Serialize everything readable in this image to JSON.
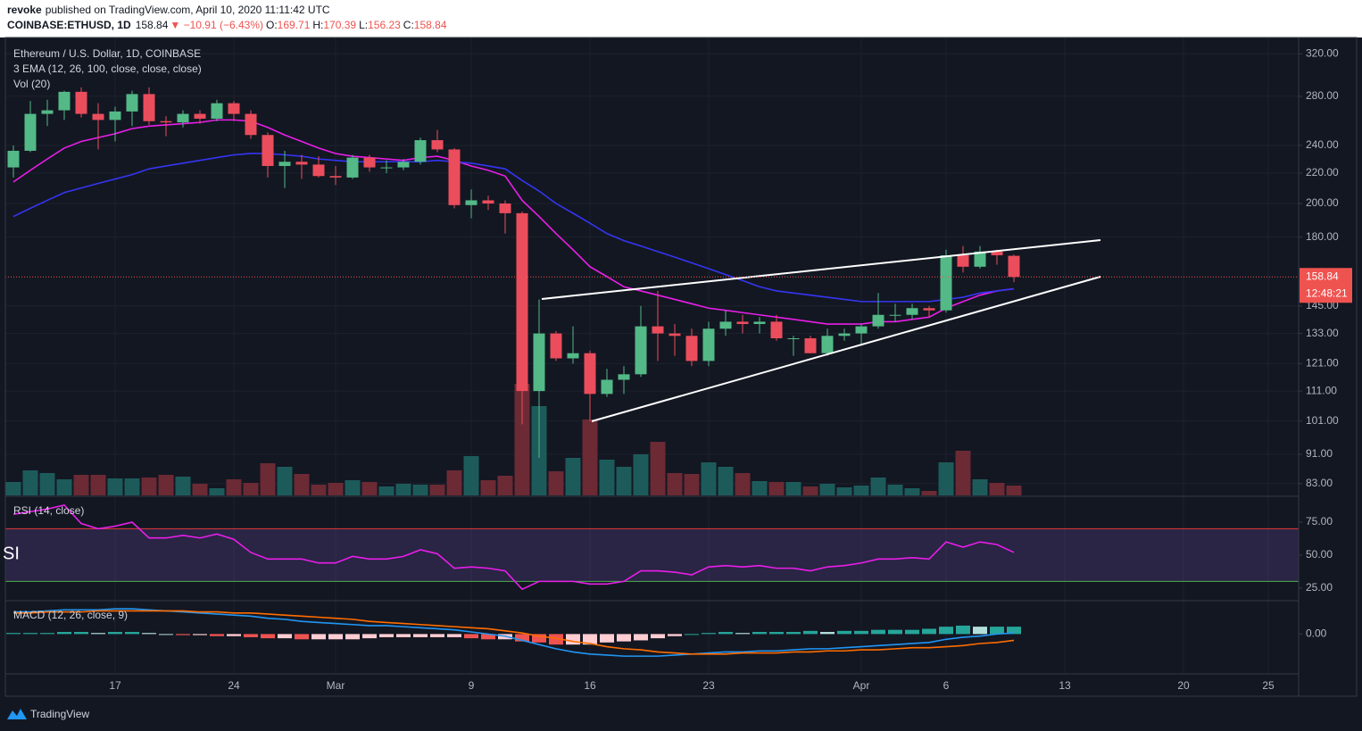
{
  "header": {
    "author": "revoke",
    "published": "published on TradingView.com, April 10, 2020 11:11:42 UTC",
    "symbol": "COINBASE:ETHUSD, 1D",
    "change": "▼ −10.91 (−6.43%)",
    "ohlc_labels": [
      "O:",
      "H:",
      "L:",
      "C:"
    ]
  },
  "footer": {
    "brand": "TradingView"
  },
  "chart_data": [
    {
      "type": "candlestick",
      "title": "Ethereum / U.S. Dollar, 1D, COINBASE",
      "ema_label": "3 EMA (12, 26, 100, close, close, close)",
      "volume_label": "Vol (20)",
      "countdown": "12:48:21",
      "categories": [
        null,
        null,
        null,
        null,
        null,
        null,
        "17",
        null,
        null,
        null,
        null,
        null,
        null,
        "24",
        null,
        null,
        null,
        null,
        null,
        "Mar",
        null,
        null,
        null,
        null,
        null,
        null,
        null,
        "9",
        null,
        null,
        null,
        null,
        null,
        null,
        "16",
        null,
        null,
        null,
        null,
        null,
        null,
        "23",
        null,
        null,
        null,
        null,
        null,
        null,
        null,
        null,
        "Apr",
        null,
        null,
        null,
        null,
        "6",
        null,
        null,
        null,
        null,
        null,
        null,
        "13",
        null,
        null,
        null,
        null,
        null,
        null,
        "20",
        null,
        null,
        null,
        null,
        "25",
        null
      ],
      "open": [
        224,
        236,
        265,
        268,
        284,
        265,
        260,
        267,
        282,
        259,
        258,
        265,
        261,
        274,
        265,
        248,
        225,
        228,
        226,
        218,
        217,
        231,
        224,
        224,
        228,
        244,
        237,
        199,
        202,
        200,
        194,
        111,
        133,
        123,
        125,
        110,
        115,
        117,
        136,
        133,
        132,
        122,
        135,
        138,
        137,
        138,
        131,
        131,
        125,
        132,
        133,
        136,
        141,
        141,
        144,
        143,
        170,
        164,
        172,
        169.71,
        null,
        null,
        null,
        null,
        null,
        null,
        null,
        null,
        null,
        null,
        null,
        null,
        null,
        null,
        null,
        null
      ],
      "high": [
        240,
        276,
        277,
        285,
        288,
        274,
        271,
        285,
        288,
        263,
        268,
        268,
        277,
        276,
        268,
        250,
        236,
        233,
        232,
        225,
        233,
        233,
        229,
        230,
        246,
        252,
        238,
        209,
        205,
        202,
        195,
        148,
        134,
        136,
        126,
        119,
        120,
        145,
        152,
        137,
        135,
        138,
        143,
        141,
        140,
        141,
        132,
        132,
        135,
        135,
        137,
        151,
        146,
        146,
        145,
        173,
        175,
        175,
        173,
        170.39,
        null,
        null,
        null,
        null,
        null,
        null,
        null,
        null,
        null,
        null,
        null,
        null,
        null,
        null,
        null,
        null
      ],
      "low": [
        217,
        235,
        255,
        260,
        262,
        237,
        243,
        255,
        256,
        247,
        254,
        257,
        259,
        259,
        245,
        217,
        210,
        216,
        217,
        212,
        216,
        221,
        220,
        222,
        226,
        235,
        197,
        191,
        196,
        182,
        100,
        90,
        122,
        121,
        101,
        109,
        110,
        116,
        122,
        124,
        120,
        120,
        132,
        133,
        133,
        130,
        124,
        125,
        124,
        130,
        128,
        135,
        138,
        139,
        140,
        142,
        161,
        163,
        165,
        156.23,
        null,
        null,
        null,
        null,
        null,
        null,
        null,
        null,
        null,
        null,
        null,
        null,
        null,
        null,
        null,
        null
      ],
      "close": [
        236,
        265,
        268,
        284,
        265,
        260,
        267,
        282,
        259,
        258,
        265,
        261,
        274,
        265,
        248,
        225,
        228,
        226,
        218,
        217,
        231,
        224,
        224,
        228,
        244,
        237,
        199,
        202,
        200,
        194,
        111,
        133,
        123,
        125,
        110,
        115,
        117,
        136,
        133,
        132,
        122,
        135,
        138,
        137,
        138,
        131,
        131,
        125,
        132,
        133,
        136,
        141,
        141,
        144,
        143,
        170,
        164,
        172,
        170,
        158.84,
        null,
        null,
        null,
        null,
        null,
        null,
        null,
        null,
        null,
        null,
        null,
        null,
        null,
        null,
        null,
        null
      ],
      "volume": [
        15,
        28,
        25,
        18,
        23,
        23,
        19,
        19,
        20,
        23,
        21,
        13,
        8,
        18,
        14,
        36,
        32,
        24,
        12,
        14,
        17,
        15,
        10,
        13,
        12,
        12,
        28,
        44,
        17,
        22,
        125,
        100,
        27,
        42,
        85,
        40,
        32,
        46,
        60,
        25,
        24,
        37,
        32,
        25,
        16,
        15,
        15,
        10,
        13,
        9,
        11,
        20,
        12,
        8,
        5,
        37,
        50,
        18,
        14,
        11,
        null,
        null,
        null,
        null,
        null,
        null,
        null,
        null,
        null,
        null,
        null,
        null,
        null,
        null,
        null,
        null
      ],
      "series": [
        {
          "color": "#e91ee9",
          "values": [
            214,
            222,
            230,
            238,
            243,
            246,
            249,
            253,
            255,
            256,
            257,
            258,
            260,
            260,
            259,
            254,
            248,
            243,
            238,
            234,
            232,
            231,
            230,
            229,
            231,
            232,
            229,
            225,
            222,
            218,
            202,
            192,
            182,
            173,
            164,
            159,
            154,
            152,
            150,
            148,
            146,
            144,
            143,
            142,
            141,
            140,
            139,
            138,
            137,
            137,
            137,
            138,
            138,
            139,
            140,
            144,
            147,
            150,
            152,
            153,
            null,
            null,
            null,
            null,
            null,
            null,
            null,
            null,
            null,
            null,
            null,
            null,
            null,
            null,
            null,
            null
          ]
        },
        {
          "color": "#3535f2",
          "values": [
            192,
            197,
            202,
            207,
            210,
            213,
            216,
            219,
            223,
            225,
            227,
            229,
            231,
            233,
            234,
            234,
            233,
            232,
            230,
            229,
            228,
            228,
            228,
            228,
            228,
            229,
            228,
            227,
            225,
            223,
            215,
            208,
            200,
            194,
            188,
            182,
            178,
            175,
            172,
            169,
            166,
            163,
            160,
            157,
            154,
            152,
            151,
            150,
            149,
            148,
            147,
            147,
            147,
            147,
            147,
            148,
            149,
            151,
            152,
            153,
            null,
            null,
            null,
            null,
            null,
            null,
            null,
            null,
            null,
            null,
            null,
            null,
            null,
            null,
            null,
            null
          ]
        }
      ],
      "up_color": "#53b987",
      "down_color": "#eb4d5c",
      "volume_up_color": "#1d5b5b",
      "volume_down_color": "#6b2a34",
      "last_color": "#ef5350",
      "log_scale": true,
      "ylim": [
        80,
        334
      ],
      "yticks": [
        {
          "value": 320,
          "label": "320.00"
        },
        {
          "value": 280,
          "label": "280.00"
        },
        {
          "value": 240,
          "label": "240.00"
        },
        {
          "value": 220,
          "label": "220.00"
        },
        {
          "value": 200,
          "label": "200.00"
        },
        {
          "value": 180,
          "label": "180.00"
        },
        {
          "value": 145,
          "label": "145.00"
        },
        {
          "value": 133,
          "label": "133.00"
        },
        {
          "value": 121,
          "label": "121.00"
        },
        {
          "value": 111,
          "label": "111.00"
        },
        {
          "value": 101,
          "label": "101.00"
        },
        {
          "value": 91,
          "label": "91.00"
        },
        {
          "value": 83,
          "label": "83.00"
        }
      ],
      "vlim": [
        0,
        510
      ],
      "grid": true
    },
    {
      "type": "line",
      "title": "RSI (14, close)",
      "watermark": "SI",
      "color": "#e91ee9",
      "values": [
        81,
        83,
        85,
        88,
        74,
        70,
        72,
        75,
        63,
        63,
        65,
        63,
        66,
        62,
        52,
        47,
        47,
        47,
        44,
        44,
        49,
        47,
        47,
        49,
        54,
        51,
        40,
        41,
        40,
        38,
        24,
        30,
        30,
        30,
        28,
        28,
        30,
        38,
        38,
        37,
        35,
        41,
        42,
        41,
        42,
        40,
        40,
        38,
        41,
        42,
        44,
        47,
        47,
        48,
        47,
        60,
        56,
        60,
        58,
        52,
        null,
        null,
        null,
        null,
        null,
        null,
        null,
        null,
        null,
        null,
        null,
        null,
        null,
        null,
        null,
        null
      ],
      "ylim": [
        16,
        92
      ],
      "yticks": [
        {
          "value": 75,
          "label": "75.00"
        },
        {
          "value": 50,
          "label": "50.00"
        },
        {
          "value": 25,
          "label": "25.00"
        }
      ],
      "bands": [
        30,
        70
      ],
      "band_colors": [
        "#4caf50",
        "#e53935"
      ],
      "band_fill": "#7e57c2"
    },
    {
      "type": "macd",
      "title": "MACD (12, 26, close, 9)",
      "series": [
        {
          "color": "#2196f3",
          "values": [
            21,
            21,
            22,
            23,
            23,
            23,
            24,
            24,
            23,
            22,
            21,
            20,
            19,
            18,
            17,
            15,
            14,
            12,
            11,
            10,
            9,
            8,
            8,
            7,
            6,
            5,
            4,
            2,
            0,
            -2,
            -6,
            -10,
            -14,
            -17,
            -19,
            -20,
            -21,
            -21,
            -21,
            -20,
            -19,
            -18,
            -17,
            -17,
            -16,
            -16,
            -15,
            -14,
            -14,
            -13,
            -12,
            -11,
            -10,
            -9,
            -8,
            -5,
            -3,
            -2,
            0,
            1,
            null,
            null,
            null,
            null,
            null,
            null,
            null,
            null,
            null,
            null,
            null,
            null,
            null,
            null,
            null,
            null
          ]
        },
        {
          "color": "#ff6d00",
          "values": [
            20,
            20,
            21,
            21,
            21,
            22,
            22,
            22,
            22,
            22,
            22,
            21,
            21,
            20,
            20,
            19,
            18,
            17,
            16,
            15,
            14,
            12,
            11,
            10,
            9,
            8,
            7,
            6,
            5,
            3,
            1,
            -2,
            -4,
            -7,
            -9,
            -12,
            -14,
            -15,
            -17,
            -18,
            -19,
            -19,
            -19,
            -18,
            -18,
            -18,
            -17,
            -17,
            -16,
            -16,
            -15,
            -15,
            -14,
            -13,
            -13,
            -12,
            -11,
            -9,
            -8,
            -6,
            null,
            null,
            null,
            null,
            null,
            null,
            null,
            null,
            null,
            null,
            null,
            null,
            null,
            null,
            null,
            null
          ]
        }
      ],
      "histogram": [
        1,
        1,
        1,
        2,
        2,
        1,
        2,
        2,
        1,
        0,
        -1,
        -1,
        -2,
        -2,
        -3,
        -4,
        -4,
        -5,
        -5,
        -5,
        -5,
        -4,
        -3,
        -3,
        -3,
        -3,
        -3,
        -4,
        -5,
        -5,
        -7,
        -8,
        -10,
        -10,
        -10,
        -8,
        -7,
        -6,
        -4,
        -2,
        0,
        1,
        2,
        1,
        2,
        2,
        2,
        3,
        2,
        3,
        3,
        4,
        4,
        4,
        5,
        7,
        8,
        7,
        7,
        7,
        null,
        null,
        null,
        null,
        null,
        null,
        null,
        null,
        null,
        null,
        null,
        null,
        null,
        null,
        null,
        null
      ],
      "histogram_colors": [
        "#26a69a",
        "#b2dfdb",
        "#ffcdd2",
        "#ef5350"
      ],
      "ylim": [
        -37,
        30
      ],
      "yticks": [
        {
          "value": 0,
          "label": "0.00"
        }
      ]
    }
  ]
}
